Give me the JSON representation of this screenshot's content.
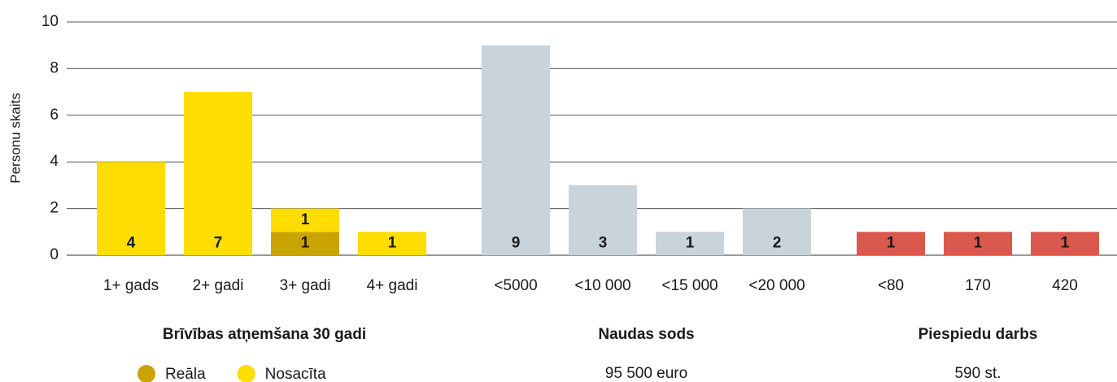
{
  "chart_data": {
    "type": "bar",
    "ylabel": "Personu skaits",
    "ylim": [
      0,
      10
    ],
    "yticks": [
      0,
      2,
      4,
      6,
      8,
      10
    ],
    "grid": true,
    "groups": [
      {
        "title": "Brīvības atņemšana 30 gadi",
        "categories": [
          "1+ gads",
          "2+ gadi",
          "3+ gadi",
          "4+ gadi"
        ],
        "series": [
          {
            "name": "Reāla",
            "color": "#c9a300",
            "values": [
              null,
              null,
              1,
              null
            ]
          },
          {
            "name": "Nosacīta",
            "color": "#ffdd00",
            "values": [
              4,
              7,
              1,
              1
            ]
          }
        ]
      },
      {
        "title": "Naudas sods",
        "subtitle": "95 500 euro",
        "categories": [
          "<5000",
          "<10 000",
          "<15 000",
          "<20 000"
        ],
        "series": [
          {
            "color": "#c8d3da",
            "values": [
              9,
              3,
              1,
              2
            ]
          }
        ]
      },
      {
        "title": "Piespiedu darbs",
        "subtitle": "590 st.",
        "categories": [
          "<80",
          "170",
          "420"
        ],
        "series": [
          {
            "color": "#d9594c",
            "values": [
              1,
              1,
              1
            ]
          }
        ]
      }
    ]
  }
}
